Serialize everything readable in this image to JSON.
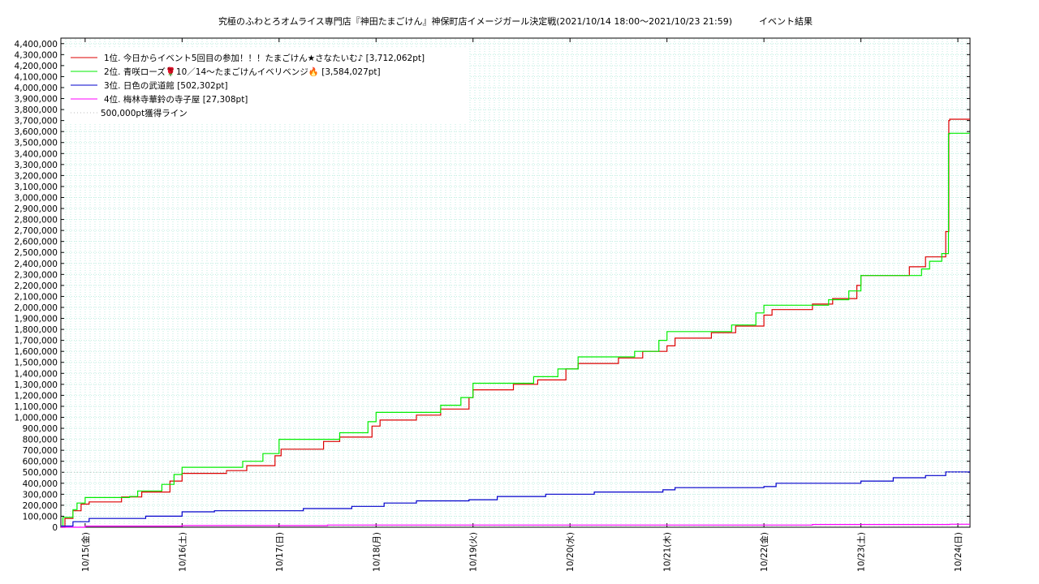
{
  "chart_data": {
    "type": "line",
    "title": "究極のふわとろオムライス専門店『神田たまごけん』神保町店イメージガール決定戦(2021/10/14 18:00～2021/10/23 21:59)　　　イベント結果",
    "xlabel": "",
    "ylabel": "",
    "xlim": [
      "2021-10-14 18:00",
      "2021-10-24 03:00"
    ],
    "ylim": [
      0,
      4450000
    ],
    "x_ticks": [
      "10/15(金)",
      "10/16(土)",
      "10/17(日)",
      "10/18(月)",
      "10/19(火)",
      "10/20(水)",
      "10/21(木)",
      "10/22(金)",
      "10/23(土)",
      "10/24(日)"
    ],
    "y_ticks": [
      "0",
      "100,000",
      "200,000",
      "300,000",
      "400,000",
      "500,000",
      "600,000",
      "700,000",
      "800,000",
      "900,000",
      "1,000,000",
      "1,100,000",
      "1,200,000",
      "1,300,000",
      "1,400,000",
      "1,500,000",
      "1,600,000",
      "1,700,000",
      "1,800,000",
      "1,900,000",
      "2,000,000",
      "2,100,000",
      "2,200,000",
      "2,300,000",
      "2,400,000",
      "2,500,000",
      "2,600,000",
      "2,700,000",
      "2,800,000",
      "2,900,000",
      "3,000,000",
      "3,100,000",
      "3,200,000",
      "3,300,000",
      "3,400,000",
      "3,500,000",
      "3,600,000",
      "3,700,000",
      "3,800,000",
      "3,900,000",
      "4,000,000",
      "4,100,000",
      "4,200,000",
      "4,300,000",
      "4,400,000"
    ],
    "grid": true,
    "legend_position": "top-left",
    "series": [
      {
        "name": "1位. 今日からイベント5回目の参加！！！たまごけん★さなたいむ♪ [3,712,062pt]",
        "color": "#dd0000",
        "style": "step",
        "points": [
          [
            "2021-10-14 18:00",
            0
          ],
          [
            "2021-10-14 19:00",
            80000
          ],
          [
            "2021-10-14 21:00",
            150000
          ],
          [
            "2021-10-14 23:00",
            210000
          ],
          [
            "2021-10-15 01:00",
            230000
          ],
          [
            "2021-10-15 09:00",
            275000
          ],
          [
            "2021-10-15 14:00",
            320000
          ],
          [
            "2021-10-15 21:00",
            420000
          ],
          [
            "2021-10-16 00:00",
            490000
          ],
          [
            "2021-10-16 11:00",
            515000
          ],
          [
            "2021-10-16 16:00",
            560000
          ],
          [
            "2021-10-16 23:00",
            650000
          ],
          [
            "2021-10-17 00:30",
            710000
          ],
          [
            "2021-10-17 11:00",
            780000
          ],
          [
            "2021-10-17 15:00",
            820000
          ],
          [
            "2021-10-17 23:00",
            920000
          ],
          [
            "2021-10-18 01:00",
            975000
          ],
          [
            "2021-10-18 10:00",
            1020000
          ],
          [
            "2021-10-18 16:00",
            1075000
          ],
          [
            "2021-10-18 23:00",
            1180000
          ],
          [
            "2021-10-19 00:00",
            1250000
          ],
          [
            "2021-10-19 10:00",
            1300000
          ],
          [
            "2021-10-19 16:00",
            1340000
          ],
          [
            "2021-10-19 23:00",
            1440000
          ],
          [
            "2021-10-20 02:00",
            1490000
          ],
          [
            "2021-10-20 12:00",
            1540000
          ],
          [
            "2021-10-20 18:00",
            1600000
          ],
          [
            "2021-10-21 00:00",
            1650000
          ],
          [
            "2021-10-21 02:00",
            1720000
          ],
          [
            "2021-10-21 11:00",
            1770000
          ],
          [
            "2021-10-21 17:00",
            1830000
          ],
          [
            "2021-10-22 00:00",
            1930000
          ],
          [
            "2021-10-22 02:00",
            1980000
          ],
          [
            "2021-10-22 12:00",
            2030000
          ],
          [
            "2021-10-22 17:00",
            2080000
          ],
          [
            "2021-10-22 23:00",
            2200000
          ],
          [
            "2021-10-23 00:00",
            2290000
          ],
          [
            "2021-10-23 12:00",
            2370000
          ],
          [
            "2021-10-23 16:00",
            2460000
          ],
          [
            "2021-10-23 21:00",
            2690000
          ],
          [
            "2021-10-23 21:45",
            3700000
          ],
          [
            "2021-10-23 21:59",
            3712062
          ]
        ]
      },
      {
        "name": "2位. 青咲ローズ🌹10／14〜たまごけんイベリベンジ🔥 [3,584,027pt]",
        "color": "#00ee00",
        "style": "step",
        "points": [
          [
            "2021-10-14 18:00",
            0
          ],
          [
            "2021-10-14 18:30",
            90000
          ],
          [
            "2021-10-14 21:00",
            160000
          ],
          [
            "2021-10-14 22:00",
            220000
          ],
          [
            "2021-10-15 00:00",
            270000
          ],
          [
            "2021-10-15 11:00",
            280000
          ],
          [
            "2021-10-15 13:00",
            330000
          ],
          [
            "2021-10-15 19:00",
            390000
          ],
          [
            "2021-10-15 22:00",
            480000
          ],
          [
            "2021-10-16 00:00",
            545000
          ],
          [
            "2021-10-16 15:00",
            600000
          ],
          [
            "2021-10-16 20:00",
            670000
          ],
          [
            "2021-10-17 00:00",
            800000
          ],
          [
            "2021-10-17 15:00",
            860000
          ],
          [
            "2021-10-17 22:00",
            960000
          ],
          [
            "2021-10-18 00:00",
            1045000
          ],
          [
            "2021-10-18 16:00",
            1110000
          ],
          [
            "2021-10-18 21:00",
            1180000
          ],
          [
            "2021-10-19 00:00",
            1310000
          ],
          [
            "2021-10-19 15:00",
            1370000
          ],
          [
            "2021-10-19 21:00",
            1440000
          ],
          [
            "2021-10-20 02:00",
            1550000
          ],
          [
            "2021-10-20 16:00",
            1600000
          ],
          [
            "2021-10-20 22:00",
            1700000
          ],
          [
            "2021-10-21 00:00",
            1780000
          ],
          [
            "2021-10-21 16:00",
            1840000
          ],
          [
            "2021-10-21 22:00",
            1950000
          ],
          [
            "2021-10-22 00:00",
            2020000
          ],
          [
            "2021-10-22 16:00",
            2070000
          ],
          [
            "2021-10-22 21:00",
            2150000
          ],
          [
            "2021-10-23 00:00",
            2290000
          ],
          [
            "2021-10-23 15:00",
            2350000
          ],
          [
            "2021-10-23 17:00",
            2420000
          ],
          [
            "2021-10-23 20:00",
            2490000
          ],
          [
            "2021-10-23 21:40",
            3580000
          ],
          [
            "2021-10-23 21:59",
            3584027
          ]
        ]
      },
      {
        "name": "3位. 日色の武道館 [502,302pt]",
        "color": "#0000cc",
        "style": "step",
        "points": [
          [
            "2021-10-14 18:00",
            10000
          ],
          [
            "2021-10-14 21:00",
            50000
          ],
          [
            "2021-10-15 01:00",
            80000
          ],
          [
            "2021-10-15 15:00",
            100000
          ],
          [
            "2021-10-16 00:00",
            140000
          ],
          [
            "2021-10-16 08:00",
            150000
          ],
          [
            "2021-10-17 06:00",
            170000
          ],
          [
            "2021-10-17 18:00",
            190000
          ],
          [
            "2021-10-18 02:00",
            220000
          ],
          [
            "2021-10-18 10:00",
            240000
          ],
          [
            "2021-10-18 23:00",
            250000
          ],
          [
            "2021-10-19 06:00",
            280000
          ],
          [
            "2021-10-19 18:00",
            300000
          ],
          [
            "2021-10-20 06:00",
            320000
          ],
          [
            "2021-10-20 23:00",
            340000
          ],
          [
            "2021-10-21 02:00",
            360000
          ],
          [
            "2021-10-22 00:00",
            370000
          ],
          [
            "2021-10-22 03:00",
            400000
          ],
          [
            "2021-10-23 00:00",
            420000
          ],
          [
            "2021-10-23 08:00",
            450000
          ],
          [
            "2021-10-23 16:00",
            470000
          ],
          [
            "2021-10-23 21:00",
            502302
          ]
        ]
      },
      {
        "name": "4位. 梅林寺華鈴の寺子屋 [27,308pt]",
        "color": "#ff00ff",
        "style": "step",
        "points": [
          [
            "2021-10-14 18:00",
            0
          ],
          [
            "2021-10-15 00:00",
            10000
          ],
          [
            "2021-10-16 00:00",
            15000
          ],
          [
            "2021-10-17 12:00",
            20000
          ],
          [
            "2021-10-22 12:00",
            25000
          ],
          [
            "2021-10-23 21:59",
            27308
          ]
        ]
      },
      {
        "name": "500,000pt獲得ライン",
        "color": "#bbbbbb",
        "style": "dotted",
        "points": [
          [
            "2021-10-14 18:00",
            500000
          ],
          [
            "2021-10-24 03:00",
            500000
          ]
        ]
      }
    ]
  }
}
